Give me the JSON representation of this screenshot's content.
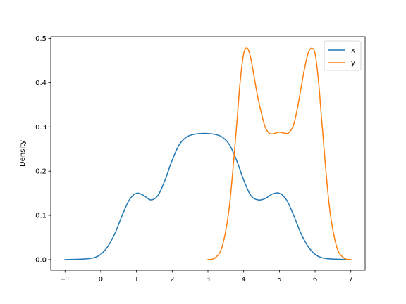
{
  "chart_data": {
    "type": "line",
    "title": "",
    "xlabel": "",
    "ylabel": "Density",
    "xlim": [
      -1.4,
      7.4
    ],
    "ylim": [
      -0.024,
      0.504
    ],
    "x_ticks": [
      -1,
      0,
      1,
      2,
      3,
      4,
      5,
      6,
      7
    ],
    "y_ticks": [
      0.0,
      0.1,
      0.2,
      0.3,
      0.4,
      0.5
    ],
    "y_tick_labels": [
      "0.0",
      "0.1",
      "0.2",
      "0.3",
      "0.4",
      "0.5"
    ],
    "grid": false,
    "legend_position": "top-right",
    "series": [
      {
        "name": "x",
        "color": "#1f77b4",
        "points": [
          [
            -1.0,
            0.0
          ],
          [
            -0.5,
            0.0012
          ],
          [
            -0.2,
            0.004
          ],
          [
            0.0,
            0.012
          ],
          [
            0.2,
            0.03
          ],
          [
            0.4,
            0.06
          ],
          [
            0.6,
            0.1
          ],
          [
            0.8,
            0.135
          ],
          [
            1.0,
            0.15
          ],
          [
            1.2,
            0.145
          ],
          [
            1.4,
            0.135
          ],
          [
            1.6,
            0.145
          ],
          [
            1.8,
            0.18
          ],
          [
            2.0,
            0.225
          ],
          [
            2.2,
            0.26
          ],
          [
            2.4,
            0.277
          ],
          [
            2.6,
            0.283
          ],
          [
            2.8,
            0.285
          ],
          [
            3.0,
            0.285
          ],
          [
            3.2,
            0.283
          ],
          [
            3.4,
            0.277
          ],
          [
            3.6,
            0.26
          ],
          [
            3.8,
            0.225
          ],
          [
            4.0,
            0.18
          ],
          [
            4.2,
            0.145
          ],
          [
            4.4,
            0.135
          ],
          [
            4.6,
            0.138
          ],
          [
            4.8,
            0.148
          ],
          [
            5.0,
            0.15
          ],
          [
            5.2,
            0.135
          ],
          [
            5.4,
            0.1
          ],
          [
            5.6,
            0.06
          ],
          [
            5.8,
            0.03
          ],
          [
            6.0,
            0.012
          ],
          [
            6.2,
            0.004
          ],
          [
            6.5,
            0.0012
          ],
          [
            7.0,
            0.0
          ]
        ]
      },
      {
        "name": "y",
        "color": "#ff7f0e",
        "points": [
          [
            3.0,
            0.0
          ],
          [
            3.2,
            0.004
          ],
          [
            3.4,
            0.03
          ],
          [
            3.6,
            0.12
          ],
          [
            3.8,
            0.3
          ],
          [
            3.9,
            0.4
          ],
          [
            4.0,
            0.465
          ],
          [
            4.1,
            0.478
          ],
          [
            4.2,
            0.455
          ],
          [
            4.3,
            0.41
          ],
          [
            4.4,
            0.365
          ],
          [
            4.5,
            0.33
          ],
          [
            4.6,
            0.3
          ],
          [
            4.7,
            0.287
          ],
          [
            4.8,
            0.284
          ],
          [
            5.0,
            0.288
          ],
          [
            5.2,
            0.285
          ],
          [
            5.3,
            0.29
          ],
          [
            5.4,
            0.305
          ],
          [
            5.5,
            0.34
          ],
          [
            5.6,
            0.385
          ],
          [
            5.7,
            0.43
          ],
          [
            5.8,
            0.465
          ],
          [
            5.9,
            0.478
          ],
          [
            6.0,
            0.465
          ],
          [
            6.1,
            0.4
          ],
          [
            6.2,
            0.3
          ],
          [
            6.4,
            0.12
          ],
          [
            6.6,
            0.03
          ],
          [
            6.8,
            0.004
          ],
          [
            7.0,
            0.0
          ]
        ]
      }
    ]
  }
}
